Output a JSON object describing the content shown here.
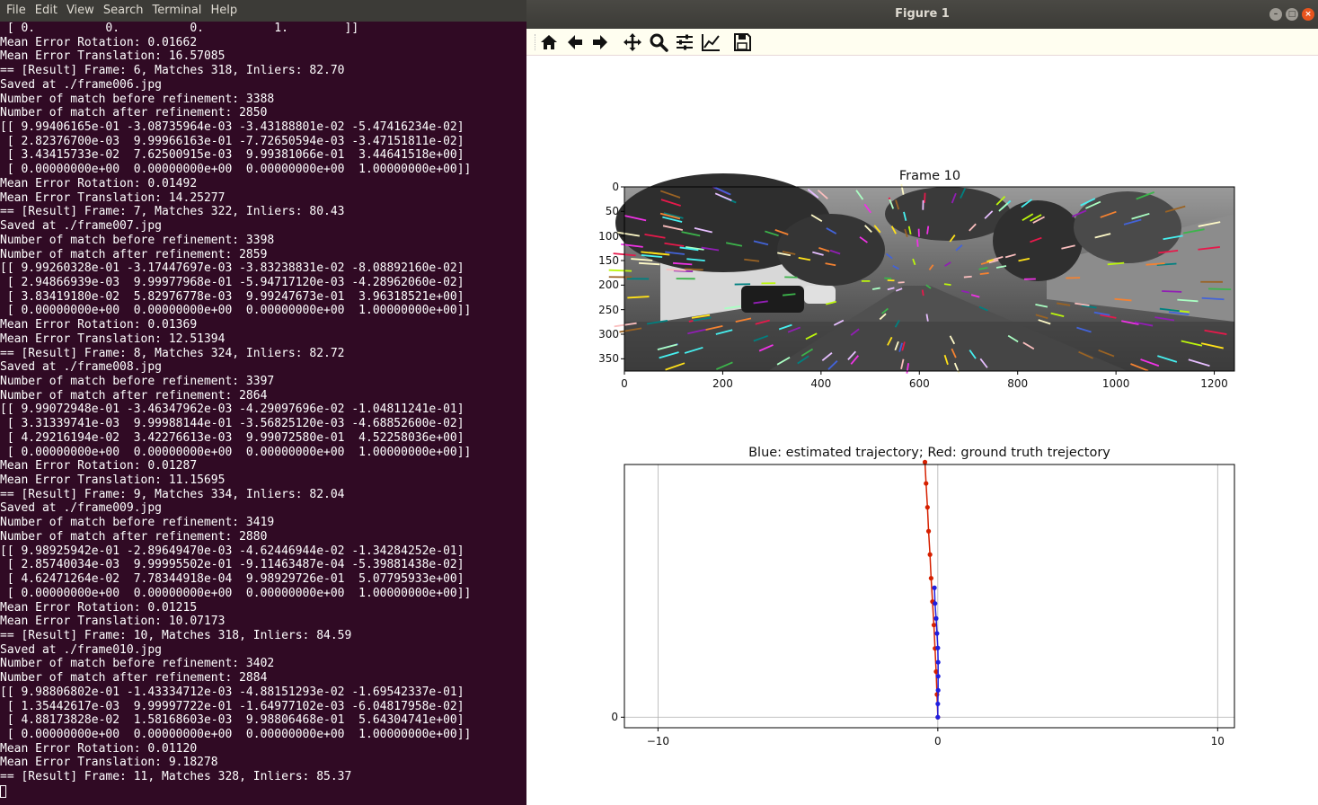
{
  "terminal": {
    "menu": [
      "File",
      "Edit",
      "View",
      "Search",
      "Terminal",
      "Help"
    ],
    "lines": [
      " [ 0.          0.          0.          1.        ]]",
      "Mean Error Rotation: 0.01662",
      "Mean Error Translation: 16.57085",
      "== [Result] Frame: 6, Matches 318, Inliers: 82.70",
      "Saved at ./frame006.jpg",
      "Number of match before refinement: 3388",
      "Number of match after refinement: 2850",
      "[[ 9.99406165e-01 -3.08735964e-03 -3.43188801e-02 -5.47416234e-02]",
      " [ 2.82376700e-03  9.99966163e-01 -7.72650594e-03 -3.47151811e-02]",
      " [ 3.43415733e-02  7.62500915e-03  9.99381066e-01  3.44641518e+00]",
      " [ 0.00000000e+00  0.00000000e+00  0.00000000e+00  1.00000000e+00]]",
      "Mean Error Rotation: 0.01492",
      "Mean Error Translation: 14.25277",
      "== [Result] Frame: 7, Matches 322, Inliers: 80.43",
      "Saved at ./frame007.jpg",
      "Number of match before refinement: 3398",
      "Number of match after refinement: 2859",
      "[[ 9.99260328e-01 -3.17447697e-03 -3.83238831e-02 -8.08892160e-02]",
      " [ 2.94866939e-03  9.99977968e-01 -5.94717120e-03 -4.28962060e-02]",
      " [ 3.83419180e-02  5.82976778e-03  9.99247673e-01  3.96318521e+00]",
      " [ 0.00000000e+00  0.00000000e+00  0.00000000e+00  1.00000000e+00]]",
      "Mean Error Rotation: 0.01369",
      "Mean Error Translation: 12.51394",
      "== [Result] Frame: 8, Matches 324, Inliers: 82.72",
      "Saved at ./frame008.jpg",
      "Number of match before refinement: 3397",
      "Number of match after refinement: 2864",
      "[[ 9.99072948e-01 -3.46347962e-03 -4.29097696e-02 -1.04811241e-01]",
      " [ 3.31339741e-03  9.99988144e-01 -3.56825120e-03 -4.68852600e-02]",
      " [ 4.29216194e-02  3.42276613e-03  9.99072580e-01  4.52258036e+00]",
      " [ 0.00000000e+00  0.00000000e+00  0.00000000e+00  1.00000000e+00]]",
      "Mean Error Rotation: 0.01287",
      "Mean Error Translation: 11.15695",
      "== [Result] Frame: 9, Matches 334, Inliers: 82.04",
      "Saved at ./frame009.jpg",
      "Number of match before refinement: 3419",
      "Number of match after refinement: 2880",
      "[[ 9.98925942e-01 -2.89649470e-03 -4.62446944e-02 -1.34284252e-01]",
      " [ 2.85740034e-03  9.99995502e-01 -9.11463487e-04 -5.39881438e-02]",
      " [ 4.62471264e-02  7.78344918e-04  9.98929726e-01  5.07795933e+00]",
      " [ 0.00000000e+00  0.00000000e+00  0.00000000e+00  1.00000000e+00]]",
      "Mean Error Rotation: 0.01215",
      "Mean Error Translation: 10.07173",
      "== [Result] Frame: 10, Matches 318, Inliers: 84.59",
      "Saved at ./frame010.jpg",
      "Number of match before refinement: 3402",
      "Number of match after refinement: 2884",
      "[[ 9.98806802e-01 -1.43334712e-03 -4.88151293e-02 -1.69542337e-01]",
      " [ 1.35442617e-03  9.99997722e-01 -1.64977102e-03 -6.04817958e-02]",
      " [ 4.88173828e-02  1.58168603e-03  9.98806468e-01  5.64304741e+00]",
      " [ 0.00000000e+00  0.00000000e+00  0.00000000e+00  1.00000000e+00]]",
      "Mean Error Rotation: 0.01120",
      "Mean Error Translation: 9.18278",
      "== [Result] Frame: 11, Matches 328, Inliers: 85.37"
    ]
  },
  "figure": {
    "window_title": "Figure 1",
    "toolbar_icons": [
      "home-icon",
      "back-arrow-icon",
      "forward-arrow-icon",
      "pan-icon",
      "zoom-icon",
      "configure-subplots-icon",
      "edit-axis-icon",
      "save-icon"
    ],
    "colors": {
      "estimated": "#1f1fe0",
      "ground_truth": "#d62000"
    }
  },
  "chart_data": [
    {
      "type": "image",
      "title": "Frame 10",
      "xlim": [
        0,
        1241
      ],
      "ylim": [
        375,
        0
      ],
      "xticks": [
        0,
        200,
        400,
        600,
        800,
        1000,
        1200
      ],
      "yticks": [
        0,
        50,
        100,
        150,
        200,
        250,
        300,
        350
      ]
    },
    {
      "type": "line",
      "title": "Blue: estimated trajectory; Red: ground truth trejectory",
      "xlim": [
        -11.2,
        10.6
      ],
      "ylim": [
        -0.45,
        10.8
      ],
      "xticks": [
        -10,
        0,
        10
      ],
      "yticks": [
        0
      ],
      "grid": true,
      "series": [
        {
          "color": "#d62000",
          "x": [
            0.0,
            -0.03,
            -0.06,
            -0.1,
            -0.14,
            -0.19,
            -0.24,
            -0.28,
            -0.33,
            -0.37,
            -0.42,
            -0.46
          ],
          "y": [
            0.0,
            0.97,
            1.95,
            2.94,
            3.94,
            4.94,
            5.94,
            6.95,
            7.95,
            8.97,
            9.99,
            10.9
          ]
        },
        {
          "color": "#1f1fe0",
          "x": [
            0.0,
            0.0,
            0.01,
            0.01,
            0.01,
            0.0,
            -0.03,
            -0.06,
            -0.1,
            -0.12
          ],
          "y": [
            0.0,
            0.57,
            1.15,
            1.75,
            2.35,
            2.96,
            3.58,
            4.22,
            4.86,
            5.53
          ]
        }
      ]
    }
  ]
}
